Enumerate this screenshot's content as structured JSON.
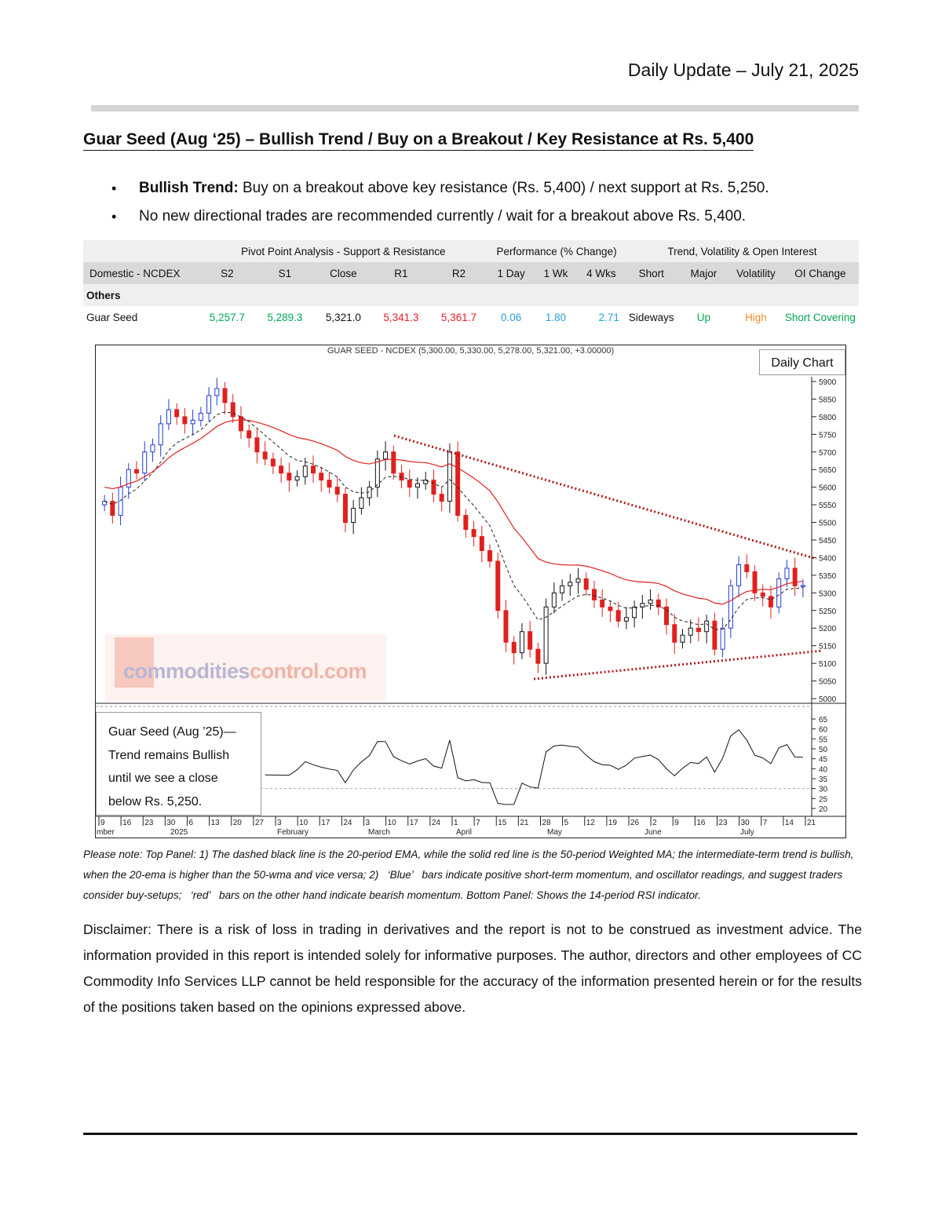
{
  "header": {
    "date": "Daily Update – July 21, 2025"
  },
  "title": "Guar Seed (Aug   ‘25) – Bullish Trend / Buy on a Breakout / Key Resistance at Rs. 5,400",
  "bullets": [
    {
      "bold": "Bullish Trend:",
      "text": " Buy on a breakout above key resistance (Rs. 5,400) / next support at Rs. 5,250."
    },
    {
      "bold": "",
      "text": "No new directional trades are recommended currently / wait for a breakout above Rs. 5,400."
    }
  ],
  "table": {
    "groups": [
      "Pivot Point Analysis - Support & Resistance",
      "Performance (% Change)",
      "Trend, Volatility & Open Interest"
    ],
    "columns": [
      "Domestic - NCDEX",
      "S2",
      "S1",
      "Close",
      "R1",
      "R2",
      "1 Day",
      "1 Wk",
      "4 Wks",
      "Short",
      "Major",
      "Volatility",
      "OI Change"
    ],
    "section": "Others",
    "row": {
      "name": "Guar Seed",
      "s2": "5,257.7",
      "s1": "5,289.3",
      "close": "5,321.0",
      "r1": "5,341.3",
      "r2": "5,361.7",
      "d1": "0.06",
      "w1": "1.80",
      "w4": "2.71",
      "short": "Sideways",
      "major": "Up",
      "volatility": "High",
      "oi": "Short Covering"
    },
    "colors": {
      "support": "#00a651",
      "resistance": "#e8202a",
      "perf": "#22a0d8",
      "up": "#00a651",
      "high": "#f28c28",
      "oi": "#00a651"
    }
  },
  "chart": {
    "title": "GUAR SEED - NCDEX (5,300.00, 5,330.00, 5,278.00, 5,321.00, +3.00000)",
    "label": "Daily Chart",
    "annotation": [
      "Guar Seed (Aug   ’25)—",
      "Trend remains Bullish",
      "until we see a close",
      "below Rs. 5,250."
    ],
    "watermark": {
      "part1": "commodities",
      "part2": "control.com"
    },
    "price_ticks": [
      "5900",
      "5850",
      "5800",
      "5750",
      "5700",
      "5650",
      "5600",
      "5550",
      "5500",
      "5450",
      "5400",
      "5350",
      "5300",
      "5250",
      "5200",
      "5150",
      "5100",
      "5050",
      "5000"
    ],
    "rsi_ticks": [
      "65",
      "60",
      "55",
      "50",
      "45",
      "40",
      "35",
      "30",
      "25",
      "20"
    ],
    "date_ticks": [
      "9",
      "16",
      "23",
      "30",
      "6",
      "13",
      "20",
      "27",
      "3",
      "10",
      "17",
      "24",
      "3",
      "10",
      "17",
      "24",
      "1",
      "7",
      "15",
      "21",
      "28",
      "5",
      "12",
      "19",
      "26",
      "2",
      "9",
      "16",
      "23",
      "30",
      "7",
      "14",
      "21"
    ],
    "month_labels": [
      "mber",
      "2025",
      "February",
      "March",
      "April",
      "May",
      "June",
      "July"
    ]
  },
  "chart_data": {
    "type": "candlestick",
    "title": "GUAR SEED - NCDEX (5,300.00, 5,330.00, 5,278.00, 5,321.00, +3.00000)",
    "ylim": [
      5000,
      5900
    ],
    "last": {
      "open": 5300.0,
      "high": 5330.0,
      "low": 5278.0,
      "close": 5321.0,
      "change": 3.0
    },
    "key_resistance": 5400,
    "support": 5250,
    "rsi_period": 14,
    "rsi_ylim": [
      20,
      65
    ],
    "close_series": [
      5560,
      5520,
      5600,
      5650,
      5640,
      5700,
      5720,
      5780,
      5820,
      5800,
      5780,
      5790,
      5810,
      5860,
      5880,
      5840,
      5800,
      5760,
      5740,
      5700,
      5680,
      5660,
      5640,
      5620,
      5630,
      5660,
      5640,
      5620,
      5600,
      5580,
      5500,
      5540,
      5570,
      5600,
      5680,
      5700,
      5640,
      5620,
      5600,
      5610,
      5620,
      5580,
      5560,
      5700,
      5520,
      5480,
      5460,
      5420,
      5390,
      5250,
      5160,
      5130,
      5190,
      5140,
      5100,
      5260,
      5300,
      5320,
      5330,
      5340,
      5310,
      5280,
      5260,
      5250,
      5220,
      5230,
      5260,
      5270,
      5280,
      5260,
      5210,
      5160,
      5180,
      5200,
      5190,
      5220,
      5140,
      5200,
      5320,
      5380,
      5360,
      5300,
      5290,
      5260,
      5340,
      5370,
      5320,
      5321
    ]
  }
}
